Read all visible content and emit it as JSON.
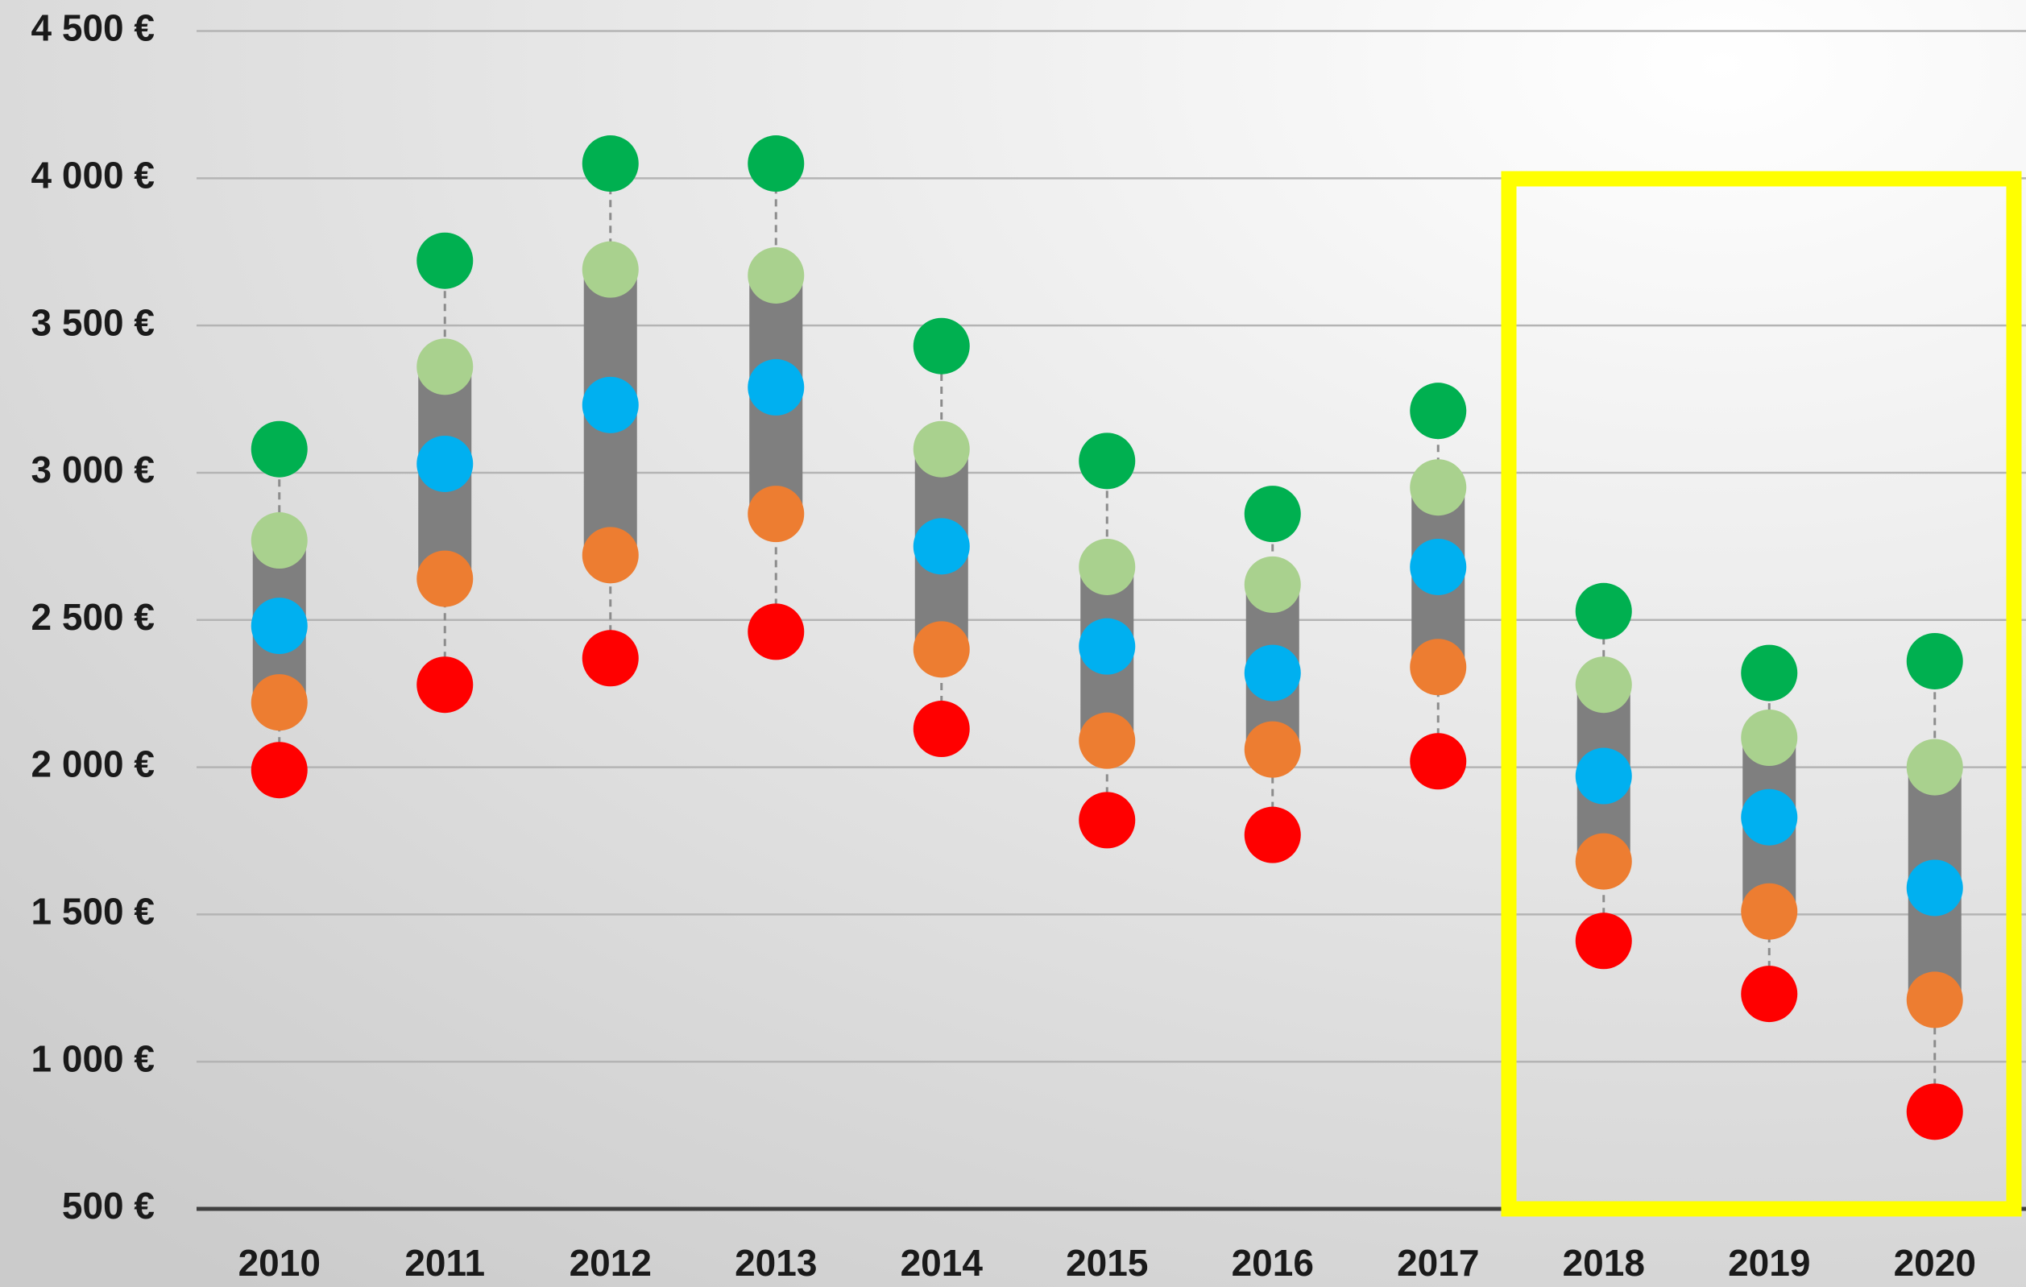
{
  "chart_data": {
    "type": "dot_range",
    "categories": [
      "2010",
      "2011",
      "2012",
      "2013",
      "2014",
      "2015",
      "2016",
      "2017",
      "2018",
      "2019",
      "2020"
    ],
    "series": [
      {
        "color": "#00b050",
        "values": [
          3080,
          3720,
          4050,
          4050,
          3430,
          3040,
          2860,
          3210,
          2530,
          2320,
          2360
        ]
      },
      {
        "color": "#a9d18e",
        "values": [
          2770,
          3360,
          3690,
          3670,
          3080,
          2680,
          2620,
          2950,
          2280,
          2100,
          2000
        ]
      },
      {
        "color": "#00b0f0",
        "values": [
          2480,
          3030,
          3230,
          3290,
          2750,
          2410,
          2320,
          2680,
          1970,
          1830,
          1590
        ]
      },
      {
        "color": "#ed7d31",
        "values": [
          2220,
          2640,
          2720,
          2860,
          2400,
          2090,
          2060,
          2340,
          1680,
          1510,
          1210
        ]
      },
      {
        "color": "#ff0000",
        "values": [
          1990,
          2280,
          2370,
          2460,
          2130,
          1820,
          1770,
          2020,
          1410,
          1230,
          830
        ]
      }
    ],
    "ylim": [
      500,
      4500
    ],
    "yticks": [
      {
        "value": 500,
        "label": "500 €"
      },
      {
        "value": 1000,
        "label": "1 000 €"
      },
      {
        "value": 1500,
        "label": "1 500 €"
      },
      {
        "value": 2000,
        "label": "2 000 €"
      },
      {
        "value": 2500,
        "label": "2 500 €"
      },
      {
        "value": 3000,
        "label": "3 000 €"
      },
      {
        "value": 3500,
        "label": "3 500 €"
      },
      {
        "value": 4000,
        "label": "4 000 €"
      },
      {
        "value": 4500,
        "label": "4 500 €"
      }
    ],
    "grid": true
  }
}
